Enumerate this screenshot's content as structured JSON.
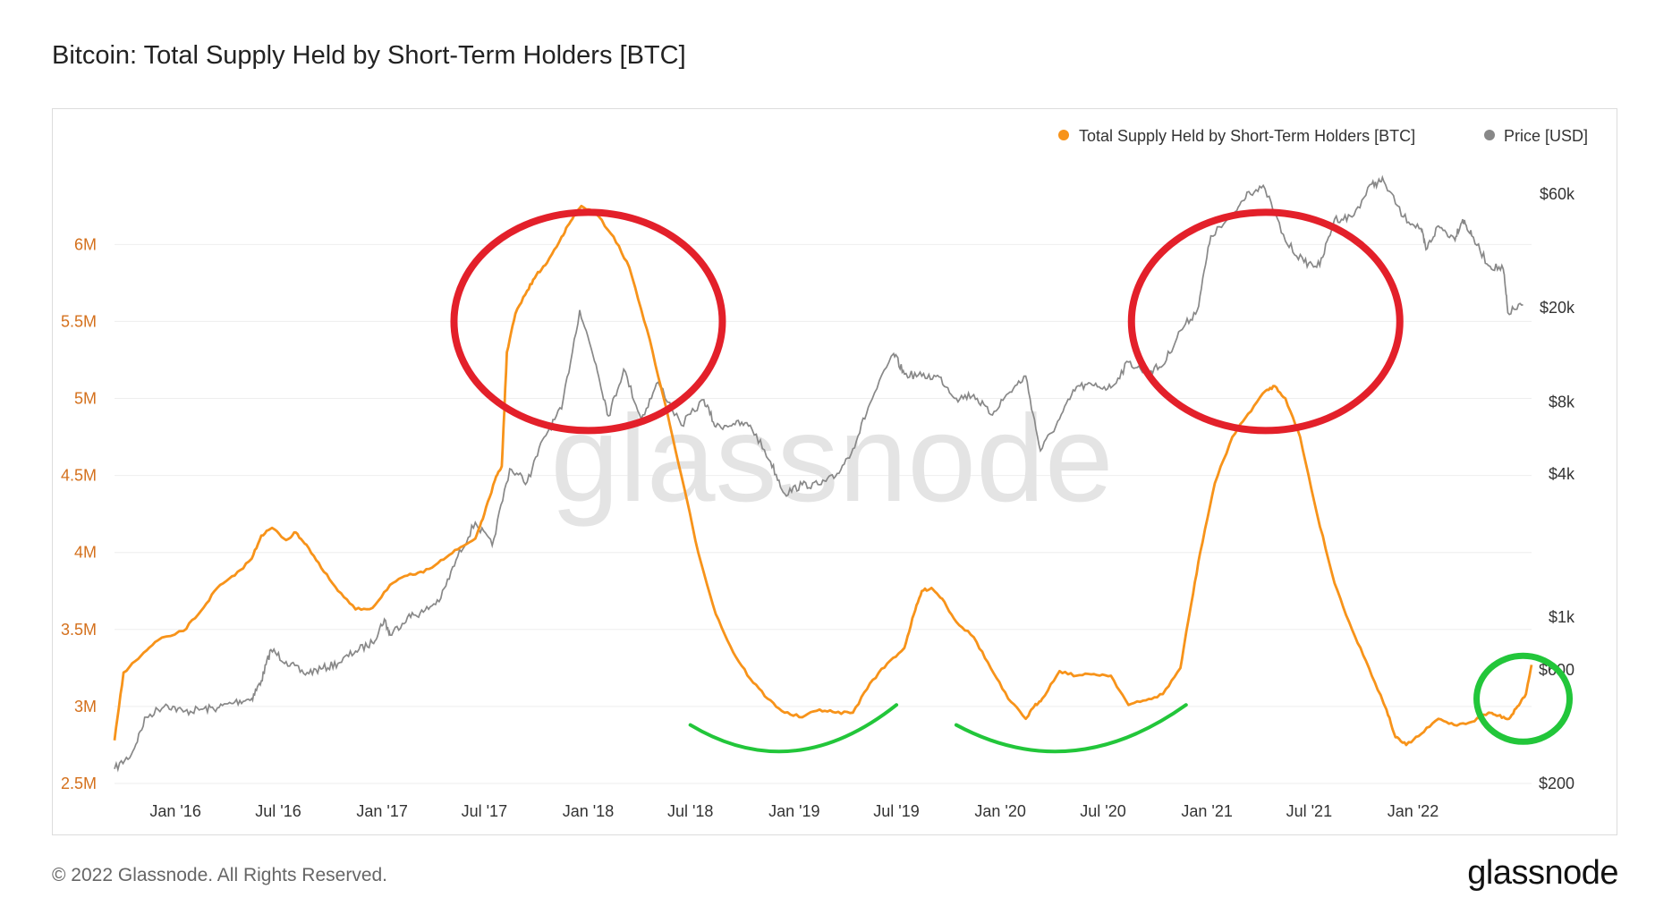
{
  "title": "Bitcoin: Total Supply Held by Short-Term Holders [BTC]",
  "footer": "© 2022 Glassnode. All Rights Reserved.",
  "brand": "glassnode",
  "watermark": "glassnode",
  "colors": {
    "sth": "#f7931a",
    "price": "#888888",
    "red_circle": "#e3202a",
    "green_mark": "#22c63a",
    "grid": "#eeeeee",
    "axis_left": "#d4701c",
    "axis_right": "#333333"
  },
  "chart_data": {
    "type": "line",
    "title": "Bitcoin: Total Supply Held by Short-Term Holders [BTC]",
    "x_ticks": [
      "Jan '16",
      "Jul '16",
      "Jan '17",
      "Jul '17",
      "Jan '18",
      "Jul '18",
      "Jan '19",
      "Jul '19",
      "Jan '20",
      "Jul '20",
      "Jan '21",
      "Jul '21",
      "Jan '22"
    ],
    "y_left": {
      "ticks": [
        2500000,
        3000000,
        3500000,
        4000000,
        4500000,
        5000000,
        5500000,
        6000000
      ],
      "tick_labels": [
        "2.5M",
        "3M",
        "3.5M",
        "4M",
        "4.5M",
        "5M",
        "5.5M",
        "6M"
      ],
      "range": [
        2500000,
        6600000
      ]
    },
    "y_right": {
      "scale": "log",
      "ticks": [
        200,
        600,
        1000,
        4000,
        8000,
        20000,
        60000
      ],
      "tick_labels": [
        "$200",
        "$600",
        "$1k",
        "$4k",
        "$8k",
        "$20k",
        "$60k"
      ],
      "range": [
        200,
        90000
      ]
    },
    "legend": {
      "placement": "top-right",
      "items": [
        {
          "label": "Total Supply Held by Short-Term Holders [BTC]",
          "color": "#f7931a"
        },
        {
          "label": "Price [USD]",
          "color": "#888888"
        }
      ]
    },
    "series": [
      {
        "name": "Total Supply Held by Short-Term Holders [BTC]",
        "axis": "left",
        "color": "#f7931a",
        "points": [
          [
            "2015-09-15",
            2780000
          ],
          [
            "2015-10-01",
            3220000
          ],
          [
            "2015-11-01",
            3330000
          ],
          [
            "2015-12-01",
            3430000
          ],
          [
            "2016-01-15",
            3490000
          ],
          [
            "2016-02-15",
            3620000
          ],
          [
            "2016-03-15",
            3770000
          ],
          [
            "2016-04-15",
            3850000
          ],
          [
            "2016-05-15",
            3960000
          ],
          [
            "2016-06-01",
            4110000
          ],
          [
            "2016-06-20",
            4160000
          ],
          [
            "2016-07-15",
            4080000
          ],
          [
            "2016-08-01",
            4130000
          ],
          [
            "2016-08-20",
            4050000
          ],
          [
            "2016-09-15",
            3900000
          ],
          [
            "2016-10-15",
            3750000
          ],
          [
            "2016-11-15",
            3630000
          ],
          [
            "2016-12-15",
            3640000
          ],
          [
            "2017-01-15",
            3790000
          ],
          [
            "2017-02-15",
            3850000
          ],
          [
            "2017-03-15",
            3870000
          ],
          [
            "2017-04-15",
            3950000
          ],
          [
            "2017-05-15",
            4020000
          ],
          [
            "2017-06-15",
            4090000
          ],
          [
            "2017-07-01",
            4250000
          ],
          [
            "2017-07-20",
            4470000
          ],
          [
            "2017-08-01",
            4560000
          ],
          [
            "2017-08-10",
            5300000
          ],
          [
            "2017-08-25",
            5550000
          ],
          [
            "2017-09-15",
            5700000
          ],
          [
            "2017-10-01",
            5800000
          ],
          [
            "2017-10-20",
            5880000
          ],
          [
            "2017-11-15",
            6050000
          ],
          [
            "2017-12-01",
            6150000
          ],
          [
            "2017-12-20",
            6250000
          ],
          [
            "2018-01-15",
            6200000
          ],
          [
            "2018-02-15",
            6050000
          ],
          [
            "2018-03-15",
            5850000
          ],
          [
            "2018-04-15",
            5450000
          ],
          [
            "2018-05-15",
            5000000
          ],
          [
            "2018-06-15",
            4500000
          ],
          [
            "2018-07-15",
            4000000
          ],
          [
            "2018-08-15",
            3600000
          ],
          [
            "2018-09-15",
            3350000
          ],
          [
            "2018-10-15",
            3180000
          ],
          [
            "2018-11-15",
            3050000
          ],
          [
            "2018-12-15",
            2960000
          ],
          [
            "2019-01-15",
            2930000
          ],
          [
            "2019-02-15",
            2980000
          ],
          [
            "2019-03-15",
            2960000
          ],
          [
            "2019-04-15",
            2960000
          ],
          [
            "2019-05-15",
            3150000
          ],
          [
            "2019-06-15",
            3280000
          ],
          [
            "2019-07-15",
            3380000
          ],
          [
            "2019-08-01",
            3600000
          ],
          [
            "2019-08-15",
            3750000
          ],
          [
            "2019-09-01",
            3770000
          ],
          [
            "2019-09-20",
            3700000
          ],
          [
            "2019-10-15",
            3550000
          ],
          [
            "2019-11-15",
            3450000
          ],
          [
            "2019-12-15",
            3250000
          ],
          [
            "2020-01-15",
            3050000
          ],
          [
            "2020-02-15",
            2920000
          ],
          [
            "2020-03-01",
            3000000
          ],
          [
            "2020-03-15",
            3050000
          ],
          [
            "2020-04-15",
            3230000
          ],
          [
            "2020-05-15",
            3200000
          ],
          [
            "2020-06-15",
            3210000
          ],
          [
            "2020-07-15",
            3200000
          ],
          [
            "2020-08-15",
            3010000
          ],
          [
            "2020-09-15",
            3040000
          ],
          [
            "2020-10-15",
            3080000
          ],
          [
            "2020-11-15",
            3250000
          ],
          [
            "2020-12-01",
            3600000
          ],
          [
            "2020-12-20",
            4000000
          ],
          [
            "2021-01-15",
            4450000
          ],
          [
            "2021-02-15",
            4750000
          ],
          [
            "2021-03-15",
            4900000
          ],
          [
            "2021-04-15",
            5050000
          ],
          [
            "2021-05-01",
            5080000
          ],
          [
            "2021-05-20",
            5000000
          ],
          [
            "2021-06-15",
            4750000
          ],
          [
            "2021-07-15",
            4250000
          ],
          [
            "2021-08-15",
            3800000
          ],
          [
            "2021-09-15",
            3500000
          ],
          [
            "2021-10-15",
            3250000
          ],
          [
            "2021-11-15",
            2980000
          ],
          [
            "2021-12-01",
            2800000
          ],
          [
            "2021-12-20",
            2750000
          ],
          [
            "2022-01-15",
            2820000
          ],
          [
            "2022-02-15",
            2920000
          ],
          [
            "2022-03-15",
            2880000
          ],
          [
            "2022-04-15",
            2900000
          ],
          [
            "2022-05-15",
            2960000
          ],
          [
            "2022-06-01",
            2940000
          ],
          [
            "2022-06-20",
            2920000
          ],
          [
            "2022-07-05",
            3000000
          ],
          [
            "2022-07-20",
            3080000
          ],
          [
            "2022-07-30",
            3270000
          ]
        ]
      },
      {
        "name": "Price [USD]",
        "axis": "right",
        "color": "#888888",
        "points": [
          [
            "2015-09-15",
            230
          ],
          [
            "2015-10-15",
            265
          ],
          [
            "2015-11-10",
            380
          ],
          [
            "2015-12-15",
            430
          ],
          [
            "2016-01-15",
            400
          ],
          [
            "2016-02-15",
            410
          ],
          [
            "2016-03-15",
            415
          ],
          [
            "2016-04-15",
            440
          ],
          [
            "2016-05-15",
            455
          ],
          [
            "2016-06-01",
            540
          ],
          [
            "2016-06-18",
            730
          ],
          [
            "2016-07-15",
            650
          ],
          [
            "2016-08-15",
            580
          ],
          [
            "2016-09-15",
            605
          ],
          [
            "2016-10-15",
            640
          ],
          [
            "2016-11-15",
            720
          ],
          [
            "2016-12-15",
            780
          ],
          [
            "2017-01-05",
            980
          ],
          [
            "2017-01-15",
            840
          ],
          [
            "2017-02-15",
            1000
          ],
          [
            "2017-03-15",
            1050
          ],
          [
            "2017-04-15",
            1200
          ],
          [
            "2017-05-15",
            1800
          ],
          [
            "2017-06-15",
            2500
          ],
          [
            "2017-07-15",
            2000
          ],
          [
            "2017-08-15",
            4200
          ],
          [
            "2017-09-15",
            3700
          ],
          [
            "2017-10-15",
            5700
          ],
          [
            "2017-11-15",
            7500
          ],
          [
            "2017-12-17",
            19500
          ],
          [
            "2018-01-15",
            11500
          ],
          [
            "2018-02-06",
            7000
          ],
          [
            "2018-03-05",
            11000
          ],
          [
            "2018-04-05",
            6800
          ],
          [
            "2018-05-05",
            9700
          ],
          [
            "2018-06-15",
            6400
          ],
          [
            "2018-07-25",
            8200
          ],
          [
            "2018-08-15",
            6300
          ],
          [
            "2018-09-15",
            6500
          ],
          [
            "2018-10-15",
            6400
          ],
          [
            "2018-11-20",
            4500
          ],
          [
            "2018-12-15",
            3300
          ],
          [
            "2019-01-15",
            3600
          ],
          [
            "2019-02-15",
            3600
          ],
          [
            "2019-03-15",
            3900
          ],
          [
            "2019-04-15",
            5100
          ],
          [
            "2019-05-15",
            7900
          ],
          [
            "2019-06-26",
            12800
          ],
          [
            "2019-07-15",
            10500
          ],
          [
            "2019-08-15",
            10300
          ],
          [
            "2019-09-15",
            10200
          ],
          [
            "2019-10-15",
            8300
          ],
          [
            "2019-11-15",
            8600
          ],
          [
            "2019-12-15",
            7100
          ],
          [
            "2020-01-15",
            8700
          ],
          [
            "2020-02-15",
            10300
          ],
          [
            "2020-03-12",
            5000
          ],
          [
            "2020-04-15",
            6800
          ],
          [
            "2020-05-15",
            9300
          ],
          [
            "2020-06-15",
            9400
          ],
          [
            "2020-07-15",
            9200
          ],
          [
            "2020-08-15",
            11800
          ],
          [
            "2020-09-15",
            10700
          ],
          [
            "2020-10-15",
            11400
          ],
          [
            "2020-11-15",
            16000
          ],
          [
            "2020-12-15",
            19500
          ],
          [
            "2021-01-08",
            40000
          ],
          [
            "2021-02-15",
            48000
          ],
          [
            "2021-03-13",
            61000
          ],
          [
            "2021-04-14",
            63000
          ],
          [
            "2021-05-20",
            38000
          ],
          [
            "2021-06-22",
            31000
          ],
          [
            "2021-07-20",
            30000
          ],
          [
            "2021-08-15",
            47000
          ],
          [
            "2021-09-15",
            48000
          ],
          [
            "2021-10-20",
            66000
          ],
          [
            "2021-11-10",
            68000
          ],
          [
            "2021-12-15",
            48000
          ],
          [
            "2022-01-15",
            43000
          ],
          [
            "2022-01-24",
            35000
          ],
          [
            "2022-02-15",
            44000
          ],
          [
            "2022-03-15",
            39000
          ],
          [
            "2022-03-30",
            47000
          ],
          [
            "2022-04-15",
            40000
          ],
          [
            "2022-05-15",
            30000
          ],
          [
            "2022-06-10",
            29000
          ],
          [
            "2022-06-18",
            19000
          ],
          [
            "2022-07-15",
            20500
          ]
        ]
      }
    ],
    "annotations": [
      {
        "shape": "circle",
        "color": "#e3202a",
        "center": [
          "2018-01-01",
          5500000
        ]
      },
      {
        "shape": "circle",
        "color": "#e3202a",
        "center": [
          "2021-04-15",
          5500000
        ]
      },
      {
        "shape": "circle",
        "color": "#22c63a",
        "center": [
          "2022-07-15",
          3050000
        ]
      },
      {
        "shape": "arc",
        "color": "#22c63a",
        "from": "2018-07-01",
        "to": "2019-07-01"
      },
      {
        "shape": "arc",
        "color": "#22c63a",
        "from": "2019-10-15",
        "to": "2020-11-25"
      }
    ]
  }
}
